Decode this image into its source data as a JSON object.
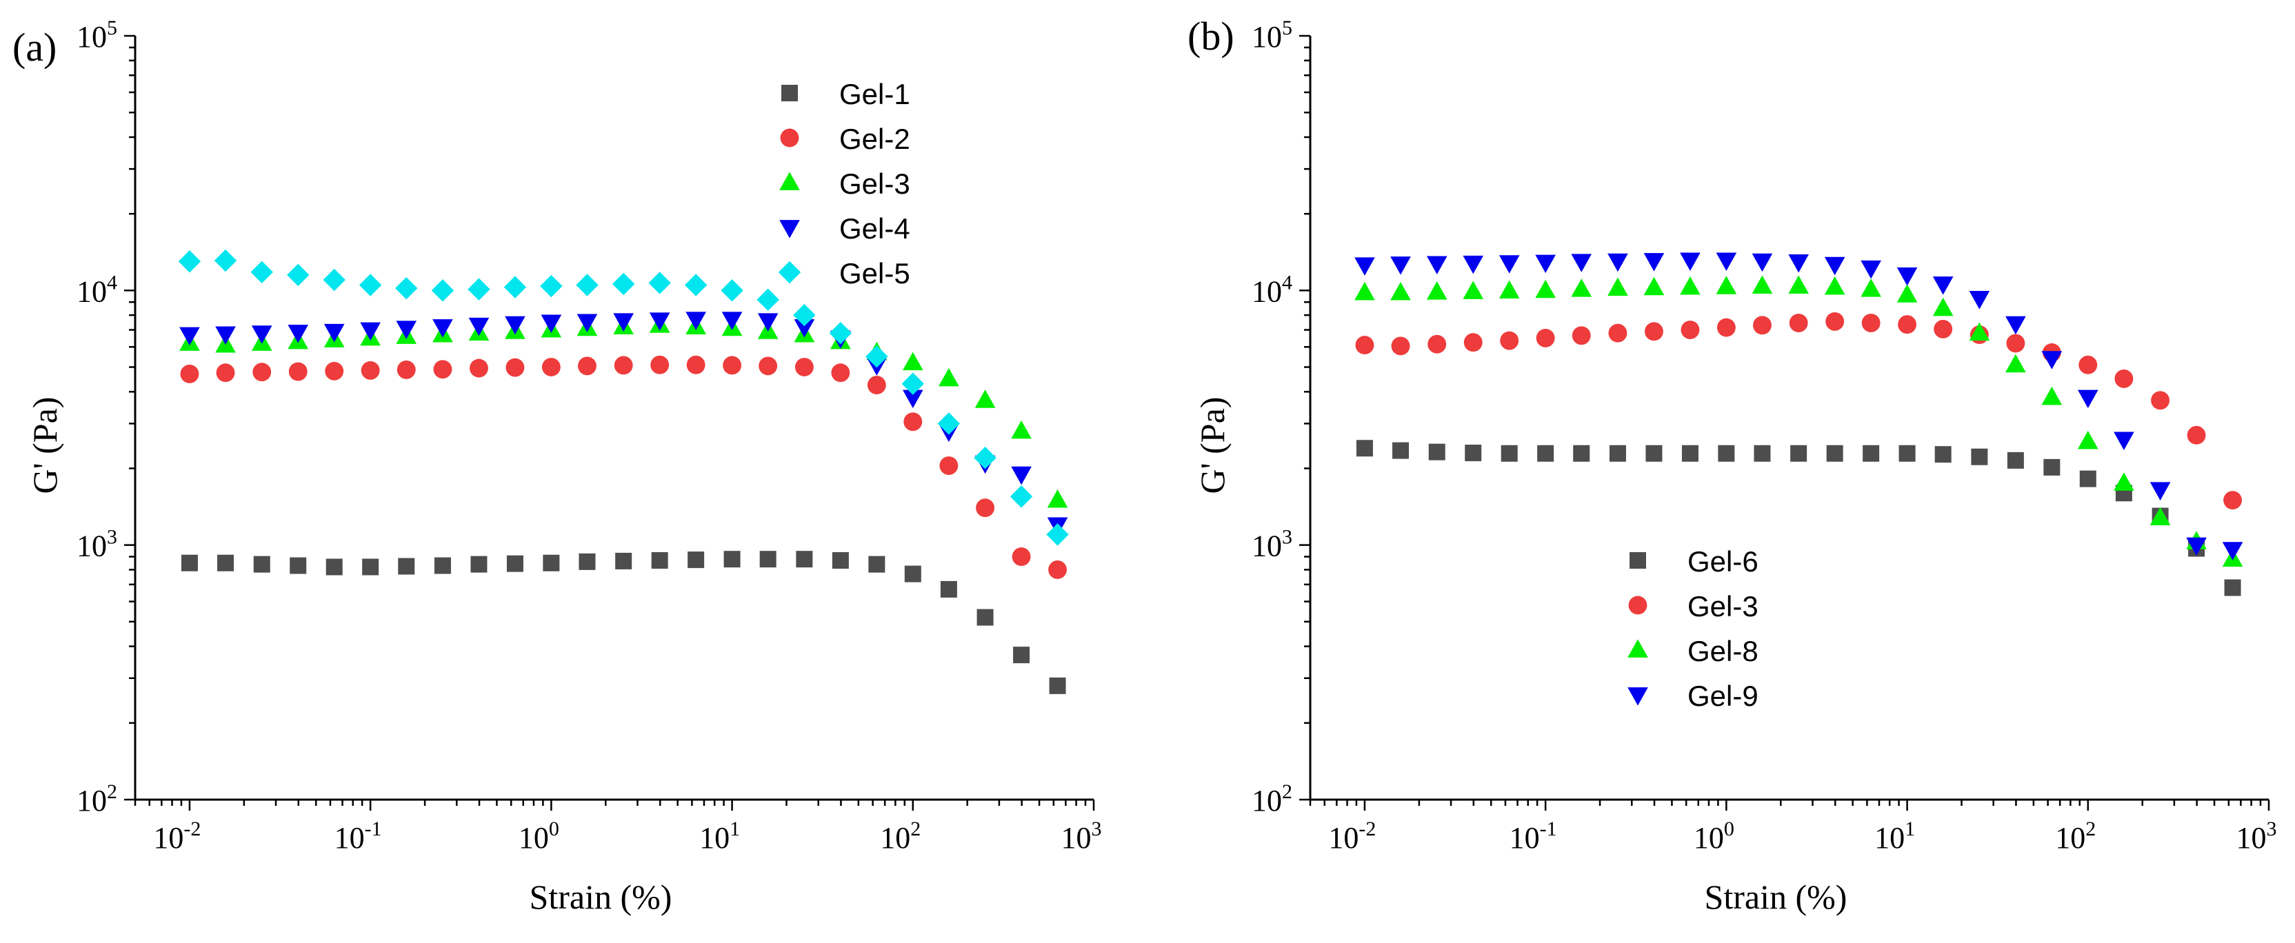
{
  "chart_data": [
    {
      "type": "scatter",
      "panel_label": "(a)",
      "xlabel": "Strain (%)",
      "ylabel": "G' (Pa)",
      "xscale": "log",
      "yscale": "log",
      "xlim": [
        0.005,
        1000
      ],
      "ylim": [
        100,
        100000
      ],
      "x_ticks": [
        {
          "base": "10",
          "exp": "-2"
        },
        {
          "base": "10",
          "exp": "-1"
        },
        {
          "base": "10",
          "exp": "0"
        },
        {
          "base": "10",
          "exp": "1"
        },
        {
          "base": "10",
          "exp": "2"
        },
        {
          "base": "10",
          "exp": "3"
        }
      ],
      "y_ticks": [
        {
          "base": "10",
          "exp": "2"
        },
        {
          "base": "10",
          "exp": "3"
        },
        {
          "base": "10",
          "exp": "4"
        },
        {
          "base": "10",
          "exp": "5"
        }
      ],
      "legend_position": "top-center",
      "x": [
        0.01,
        0.0158,
        0.0251,
        0.0398,
        0.0631,
        0.1,
        0.158,
        0.251,
        0.398,
        0.631,
        1,
        1.58,
        2.51,
        3.98,
        6.31,
        10,
        15.8,
        25.1,
        39.8,
        63.1,
        100,
        158,
        251,
        398,
        631
      ],
      "series": [
        {
          "name": "Gel-1",
          "marker": "square",
          "color": "#4d4d4d",
          "values": [
            850,
            850,
            840,
            830,
            820,
            820,
            825,
            830,
            840,
            845,
            850,
            860,
            865,
            870,
            875,
            880,
            880,
            880,
            870,
            840,
            770,
            670,
            520,
            370,
            280
          ]
        },
        {
          "name": "Gel-2",
          "marker": "circle",
          "color": "#ee3b3b",
          "values": [
            4700,
            4750,
            4780,
            4800,
            4820,
            4850,
            4880,
            4900,
            4950,
            4980,
            5000,
            5050,
            5080,
            5100,
            5100,
            5080,
            5050,
            5000,
            4750,
            4250,
            3050,
            2050,
            1400,
            900,
            800
          ]
        },
        {
          "name": "Gel-3",
          "marker": "triangle-up",
          "color": "#00ee00",
          "values": [
            6200,
            6100,
            6200,
            6300,
            6400,
            6500,
            6600,
            6700,
            6800,
            6900,
            7000,
            7100,
            7200,
            7300,
            7200,
            7100,
            6900,
            6700,
            6300,
            5700,
            5200,
            4500,
            3700,
            2800,
            1500
          ]
        },
        {
          "name": "Gel-4",
          "marker": "triangle-down",
          "color": "#0000ee",
          "values": [
            6700,
            6750,
            6800,
            6850,
            6900,
            7000,
            7100,
            7200,
            7300,
            7400,
            7500,
            7550,
            7600,
            7650,
            7700,
            7700,
            7600,
            7200,
            6500,
            5100,
            3800,
            2800,
            2100,
            1900,
            1200
          ]
        },
        {
          "name": "Gel-5",
          "marker": "diamond",
          "color": "#00e5ee",
          "values": [
            13000,
            13100,
            11800,
            11500,
            11000,
            10500,
            10200,
            10000,
            10100,
            10300,
            10400,
            10500,
            10600,
            10700,
            10500,
            10000,
            9200,
            8000,
            6800,
            5500,
            4300,
            3000,
            2200,
            1550,
            1100
          ]
        }
      ]
    },
    {
      "type": "scatter",
      "panel_label": "(b)",
      "xlabel": "Strain (%)",
      "ylabel": "G' (Pa)",
      "xscale": "log",
      "yscale": "log",
      "xlim": [
        0.005,
        1000
      ],
      "ylim": [
        100,
        100000
      ],
      "x_ticks": [
        {
          "base": "10",
          "exp": "-2"
        },
        {
          "base": "10",
          "exp": "-1"
        },
        {
          "base": "10",
          "exp": "0"
        },
        {
          "base": "10",
          "exp": "1"
        },
        {
          "base": "10",
          "exp": "2"
        },
        {
          "base": "10",
          "exp": "3"
        }
      ],
      "y_ticks": [
        {
          "base": "10",
          "exp": "2"
        },
        {
          "base": "10",
          "exp": "3"
        },
        {
          "base": "10",
          "exp": "4"
        },
        {
          "base": "10",
          "exp": "5"
        }
      ],
      "legend_position": "lower-center",
      "x": [
        0.01,
        0.0158,
        0.0251,
        0.0398,
        0.0631,
        0.1,
        0.158,
        0.251,
        0.398,
        0.631,
        1,
        1.58,
        2.51,
        3.98,
        6.31,
        10,
        15.8,
        25.1,
        39.8,
        63.1,
        100,
        158,
        251,
        398,
        631
      ],
      "series": [
        {
          "name": "Gel-6",
          "marker": "square",
          "color": "#4d4d4d",
          "values": [
            2400,
            2350,
            2320,
            2300,
            2290,
            2290,
            2290,
            2290,
            2290,
            2290,
            2290,
            2290,
            2290,
            2290,
            2290,
            2290,
            2270,
            2220,
            2150,
            2020,
            1820,
            1600,
            1300,
            970,
            680
          ]
        },
        {
          "name": "Gel-3",
          "marker": "circle",
          "color": "#ee3b3b",
          "values": [
            6100,
            6050,
            6150,
            6250,
            6350,
            6500,
            6650,
            6800,
            6900,
            7000,
            7150,
            7300,
            7450,
            7550,
            7450,
            7350,
            7050,
            6700,
            6200,
            5700,
            5100,
            4500,
            3700,
            2700,
            1500
          ]
        },
        {
          "name": "Gel-8",
          "marker": "triangle-up",
          "color": "#00ee00",
          "values": [
            9800,
            9800,
            9850,
            9900,
            9950,
            10000,
            10100,
            10200,
            10250,
            10300,
            10350,
            10400,
            10400,
            10300,
            10100,
            9600,
            8500,
            6800,
            5100,
            3800,
            2550,
            1750,
            1280,
            1030,
            880
          ]
        },
        {
          "name": "Gel-9",
          "marker": "triangle-down",
          "color": "#0000ee",
          "values": [
            12600,
            12700,
            12750,
            12800,
            12850,
            12900,
            13000,
            13050,
            13100,
            13150,
            13150,
            13050,
            12950,
            12650,
            12250,
            11500,
            10600,
            9300,
            7400,
            5400,
            3800,
            2600,
            1650,
            1000,
            960
          ]
        }
      ]
    }
  ]
}
